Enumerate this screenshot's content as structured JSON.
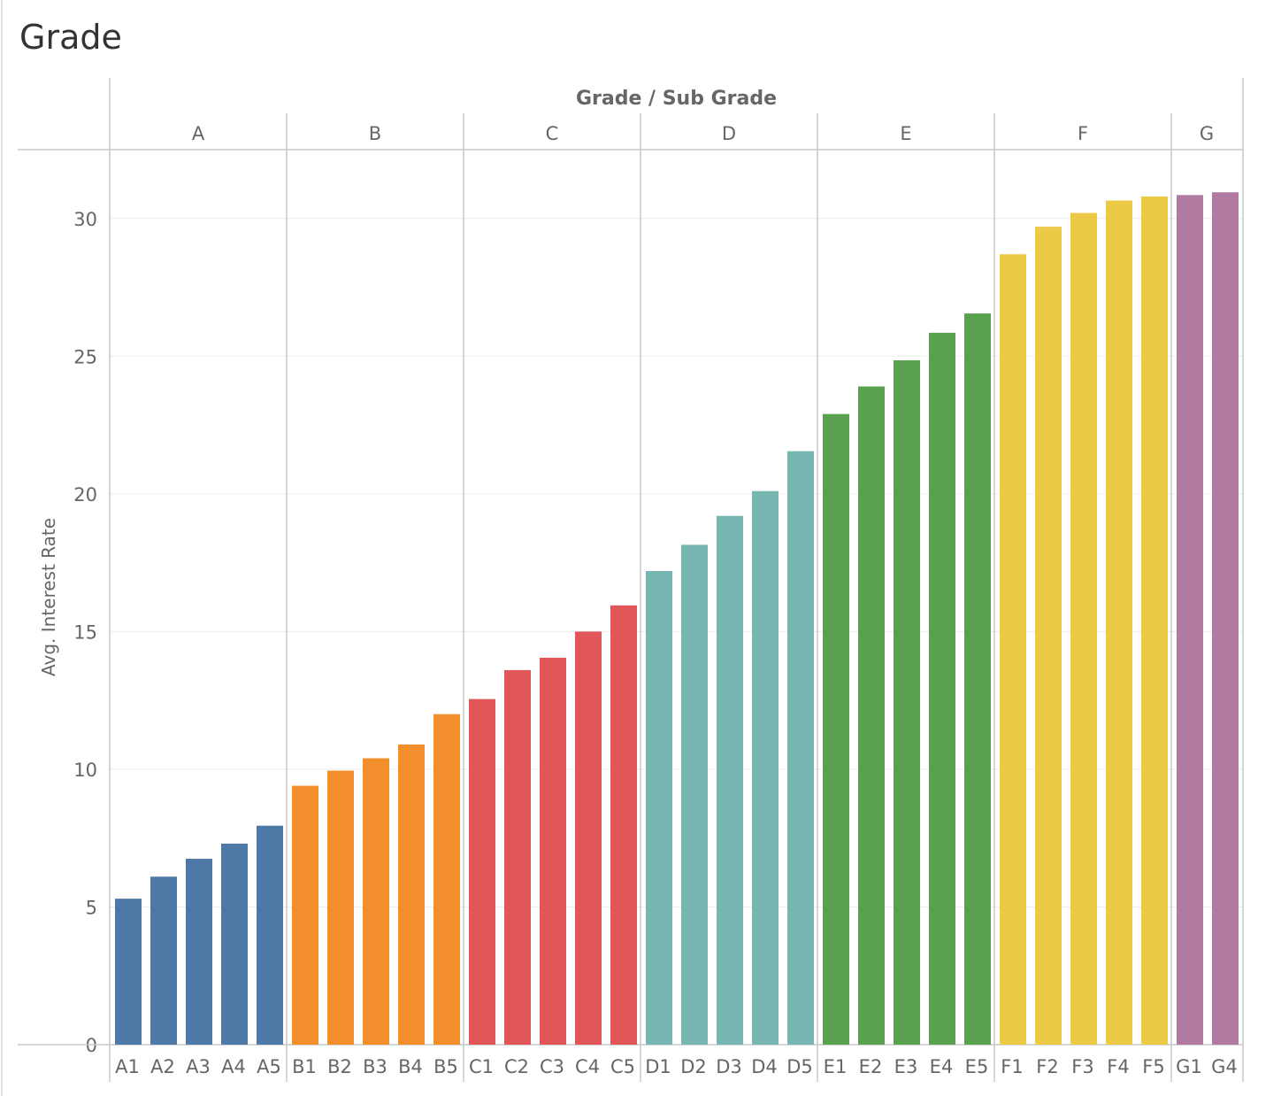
{
  "chart_data": {
    "type": "bar",
    "title": "Grade",
    "column_header": "Grade / Sub Grade",
    "ylabel": "Avg. Interest Rate",
    "ylim": [
      0,
      32.5
    ],
    "yticks": [
      0,
      5,
      10,
      15,
      20,
      25,
      30
    ],
    "grid": true,
    "groups": [
      {
        "name": "A",
        "color": "#4e79a7",
        "categories": [
          "A1",
          "A2",
          "A3",
          "A4",
          "A5"
        ],
        "values": [
          5.3,
          6.1,
          6.75,
          7.3,
          7.95
        ]
      },
      {
        "name": "B",
        "color": "#f28e2b",
        "categories": [
          "B1",
          "B2",
          "B3",
          "B4",
          "B5"
        ],
        "values": [
          9.4,
          9.95,
          10.4,
          10.9,
          12.0
        ]
      },
      {
        "name": "C",
        "color": "#e15759",
        "categories": [
          "C1",
          "C2",
          "C3",
          "C4",
          "C5"
        ],
        "values": [
          12.55,
          13.6,
          14.05,
          15.0,
          15.95
        ]
      },
      {
        "name": "D",
        "color": "#76b7b2",
        "categories": [
          "D1",
          "D2",
          "D3",
          "D4",
          "D5"
        ],
        "values": [
          17.2,
          18.15,
          19.2,
          20.1,
          21.55
        ]
      },
      {
        "name": "E",
        "color": "#59a14f",
        "categories": [
          "E1",
          "E2",
          "E3",
          "E4",
          "E5"
        ],
        "values": [
          22.9,
          23.9,
          24.85,
          25.85,
          26.55
        ]
      },
      {
        "name": "F",
        "color": "#edc948",
        "categories": [
          "F1",
          "F2",
          "F3",
          "F4",
          "F5"
        ],
        "values": [
          28.7,
          29.7,
          30.2,
          30.65,
          30.8
        ]
      },
      {
        "name": "G",
        "color": "#b07aa1",
        "categories": [
          "G1",
          "G4"
        ],
        "values": [
          30.85,
          30.95
        ]
      }
    ]
  }
}
